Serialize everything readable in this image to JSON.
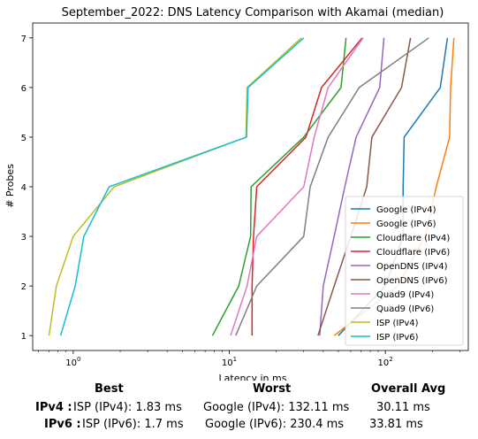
{
  "chart_data": {
    "type": "line",
    "title": "September_2022: DNS Latency Comparison with Akamai (median)",
    "xlabel": "Latency in ms",
    "ylabel": "# Probes",
    "xscale": "log",
    "xlim": [
      0.55,
      340
    ],
    "ylim": [
      0.7,
      7.3
    ],
    "xticks": [
      1,
      10,
      100
    ],
    "xtick_labels": [
      "10^0",
      "10^1",
      "10^2"
    ],
    "yticks": [
      1,
      2,
      3,
      4,
      5,
      6,
      7
    ],
    "grid": false,
    "legend_position": "lower right",
    "series": [
      {
        "name": "Google (IPv4)",
        "color": "#1f77b4",
        "points": [
          [
            50,
            1
          ],
          [
            100,
            2
          ],
          [
            130,
            3
          ],
          [
            130,
            4
          ],
          [
            132,
            5
          ],
          [
            225,
            6
          ],
          [
            250,
            7
          ]
        ]
      },
      {
        "name": "Google (IPv6)",
        "color": "#ff7f0e",
        "points": [
          [
            47,
            1
          ],
          [
            120,
            2
          ],
          [
            180,
            3
          ],
          [
            212,
            4
          ],
          [
            258,
            5
          ],
          [
            262,
            6
          ],
          [
            275,
            7
          ]
        ]
      },
      {
        "name": "Cloudflare (IPv4)",
        "color": "#2ca02c",
        "points": [
          [
            7.8,
            1
          ],
          [
            11.5,
            2
          ],
          [
            13.7,
            3
          ],
          [
            13.8,
            4
          ],
          [
            30,
            5
          ],
          [
            52,
            6
          ],
          [
            56,
            7
          ]
        ]
      },
      {
        "name": "Cloudflare (IPv6)",
        "color": "#d62728",
        "points": [
          [
            14,
            1
          ],
          [
            14,
            2
          ],
          [
            14.3,
            3
          ],
          [
            15,
            4
          ],
          [
            31,
            5
          ],
          [
            39,
            6
          ],
          [
            71,
            7
          ]
        ]
      },
      {
        "name": "OpenDNS (IPv4)",
        "color": "#9467bd",
        "points": [
          [
            38,
            1
          ],
          [
            40,
            2
          ],
          [
            47,
            3
          ],
          [
            55,
            4
          ],
          [
            65,
            5
          ],
          [
            92,
            6
          ],
          [
            98,
            7
          ]
        ]
      },
      {
        "name": "OpenDNS (IPv6)",
        "color": "#8c564b",
        "points": [
          [
            37,
            1
          ],
          [
            47,
            2
          ],
          [
            60,
            3
          ],
          [
            76,
            4
          ],
          [
            82,
            5
          ],
          [
            127,
            6
          ],
          [
            145,
            7
          ]
        ]
      },
      {
        "name": "Quad9 (IPv4)",
        "color": "#e377c2",
        "points": [
          [
            10.2,
            1
          ],
          [
            13,
            2
          ],
          [
            15,
            3
          ],
          [
            30,
            4
          ],
          [
            35,
            5
          ],
          [
            43,
            6
          ],
          [
            72,
            7
          ]
        ]
      },
      {
        "name": "Quad9 (IPv6)",
        "color": "#7f7f7f",
        "points": [
          [
            11,
            1
          ],
          [
            15,
            2
          ],
          [
            30,
            3
          ],
          [
            33,
            4
          ],
          [
            43,
            5
          ],
          [
            68,
            6
          ],
          [
            190,
            7
          ]
        ]
      },
      {
        "name": "ISP (IPv4)",
        "color": "#bcbd22",
        "points": [
          [
            0.7,
            1
          ],
          [
            0.78,
            2
          ],
          [
            1.0,
            3
          ],
          [
            1.83,
            4
          ],
          [
            12.8,
            5
          ],
          [
            13.0,
            6
          ],
          [
            29,
            7
          ]
        ]
      },
      {
        "name": "ISP (IPv6)",
        "color": "#17becf",
        "points": [
          [
            0.83,
            1
          ],
          [
            1.03,
            2
          ],
          [
            1.17,
            3
          ],
          [
            1.7,
            4
          ],
          [
            12.9,
            5
          ],
          [
            13.2,
            6
          ],
          [
            30,
            7
          ]
        ]
      }
    ]
  },
  "summary": {
    "headers": {
      "best": "Best",
      "worst": "Worst",
      "avg": "Overall Avg"
    },
    "rows": [
      {
        "label": "IPv4 :",
        "best": "ISP (IPv4): 1.83 ms",
        "worst": "Google (IPv4): 132.11 ms",
        "avg": "30.11 ms"
      },
      {
        "label": "IPv6 :",
        "best": "ISP (IPv6): 1.7 ms",
        "worst": "Google (IPv6): 230.4 ms",
        "avg": "33.81 ms"
      }
    ]
  }
}
